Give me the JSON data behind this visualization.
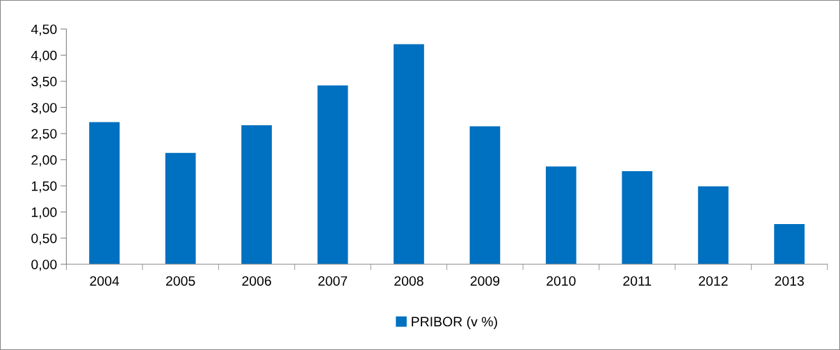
{
  "chart_data": {
    "type": "bar",
    "categories": [
      "2004",
      "2005",
      "2006",
      "2007",
      "2008",
      "2009",
      "2010",
      "2011",
      "2012",
      "2013"
    ],
    "series": [
      {
        "name": "PRIBOR (v %)",
        "color": "#0070c0",
        "values": [
          2.72,
          2.13,
          2.66,
          3.42,
          4.21,
          2.64,
          1.87,
          1.78,
          1.49,
          0.77
        ]
      }
    ],
    "ylim": [
      0,
      4.5
    ],
    "yticks": [
      {
        "value": 0,
        "label": "0,00"
      },
      {
        "value": 0.5,
        "label": "0,50"
      },
      {
        "value": 1,
        "label": "1,00"
      },
      {
        "value": 1.5,
        "label": "1,50"
      },
      {
        "value": 2,
        "label": "2,00"
      },
      {
        "value": 2.5,
        "label": "2,50"
      },
      {
        "value": 3,
        "label": "3,00"
      },
      {
        "value": 3.5,
        "label": "3,50"
      },
      {
        "value": 4,
        "label": "4,00"
      },
      {
        "value": 4.5,
        "label": "4,50"
      }
    ],
    "grid": false,
    "legend": "bottom"
  }
}
